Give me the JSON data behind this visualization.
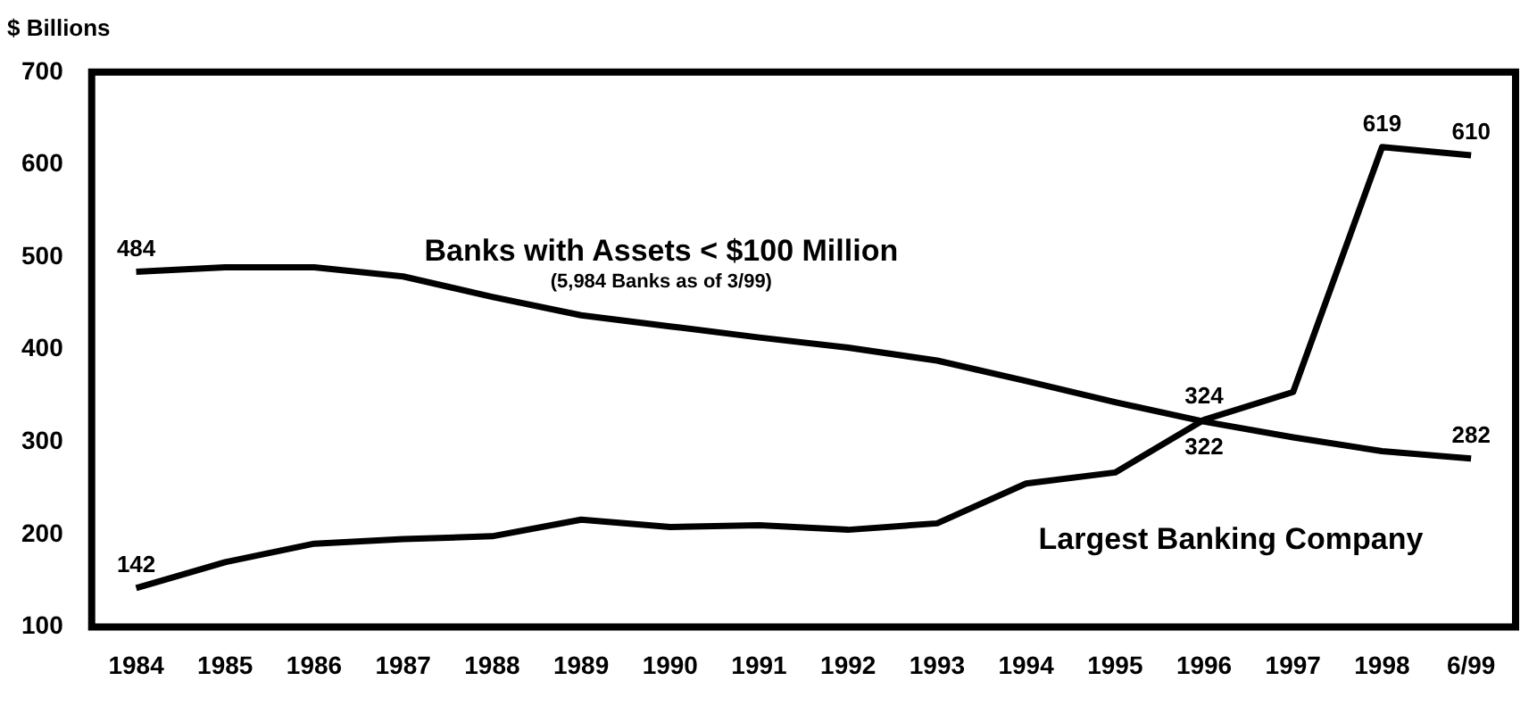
{
  "chart_data": {
    "type": "line",
    "ylabel": "$ Billions",
    "categories": [
      "1984",
      "1985",
      "1986",
      "1987",
      "1988",
      "1989",
      "1990",
      "1991",
      "1992",
      "1993",
      "1994",
      "1995",
      "1996",
      "1997",
      "1998",
      "6/99"
    ],
    "series": [
      {
        "name": "Banks with Assets < $100 Million",
        "color": "#000000",
        "values": [
          484,
          489,
          489,
          479,
          457,
          437,
          425,
          413,
          402,
          388,
          366,
          343,
          322,
          305,
          290,
          282
        ],
        "value_labels": [
          "484",
          null,
          null,
          null,
          null,
          null,
          null,
          null,
          null,
          null,
          null,
          null,
          "322",
          null,
          null,
          "282"
        ]
      },
      {
        "name": "Largest Banking Company",
        "color": "#000000",
        "values": [
          142,
          170,
          190,
          195,
          198,
          216,
          208,
          210,
          205,
          212,
          255,
          267,
          324,
          354,
          619,
          610
        ],
        "value_labels": [
          "142",
          null,
          null,
          null,
          null,
          null,
          null,
          null,
          null,
          null,
          null,
          null,
          "324",
          null,
          "619",
          "610"
        ]
      }
    ],
    "annotations": [
      "(5,984 Banks as of 3/99)"
    ],
    "ylim": [
      100,
      700
    ],
    "yticks": [
      100,
      200,
      300,
      400,
      500,
      600,
      700
    ],
    "grid": false,
    "legend": false,
    "marker": "none",
    "line_style": "solid"
  }
}
